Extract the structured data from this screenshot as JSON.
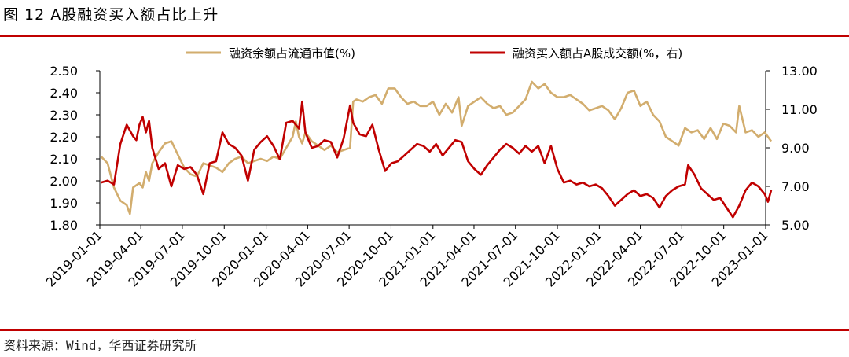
{
  "figure": {
    "title": "图 12 A股融资买入额占比上升",
    "source": "资料来源：Wind，华西证券研究所"
  },
  "colors": {
    "accent_rule": "#c00000",
    "series_left": "#d2ad6e",
    "series_right": "#c00000"
  },
  "chart_data": {
    "type": "line",
    "xlabel": "",
    "x_ticks": [
      "2019-01-01",
      "2019-04-01",
      "2019-07-01",
      "2019-10-01",
      "2020-01-01",
      "2020-04-01",
      "2020-07-01",
      "2020-10-01",
      "2021-01-01",
      "2021-04-01",
      "2021-07-01",
      "2021-10-01",
      "2022-01-01",
      "2022-04-01",
      "2022-07-01",
      "2022-10-01",
      "2023-01-01"
    ],
    "y_left": {
      "min": 1.8,
      "max": 2.5,
      "ticks": [
        "1.80",
        "1.90",
        "2.00",
        "2.10",
        "2.20",
        "2.30",
        "2.40",
        "2.50"
      ]
    },
    "y_right": {
      "min": 5.0,
      "max": 13.0,
      "ticks": [
        "5.00",
        "7.00",
        "9.00",
        "11.00",
        "13.00"
      ]
    },
    "legend": {
      "placement": "top-center"
    },
    "series": [
      {
        "name": "融资余额占流通市值(%)",
        "axis": "left",
        "points": [
          [
            "2019-01-04",
            2.11
          ],
          [
            "2019-01-18",
            2.08
          ],
          [
            "2019-02-01",
            1.97
          ],
          [
            "2019-02-15",
            1.91
          ],
          [
            "2019-03-01",
            1.89
          ],
          [
            "2019-03-08",
            1.85
          ],
          [
            "2019-03-15",
            1.97
          ],
          [
            "2019-03-29",
            1.99
          ],
          [
            "2019-04-05",
            1.97
          ],
          [
            "2019-04-12",
            2.04
          ],
          [
            "2019-04-19",
            2.0
          ],
          [
            "2019-04-26",
            2.08
          ],
          [
            "2019-05-10",
            2.13
          ],
          [
            "2019-05-24",
            2.17
          ],
          [
            "2019-06-07",
            2.18
          ],
          [
            "2019-06-21",
            2.12
          ],
          [
            "2019-07-05",
            2.06
          ],
          [
            "2019-07-19",
            2.03
          ],
          [
            "2019-08-02",
            2.02
          ],
          [
            "2019-08-16",
            2.08
          ],
          [
            "2019-08-30",
            2.07
          ],
          [
            "2019-09-13",
            2.06
          ],
          [
            "2019-09-27",
            2.04
          ],
          [
            "2019-10-11",
            2.08
          ],
          [
            "2019-10-25",
            2.1
          ],
          [
            "2019-11-08",
            2.11
          ],
          [
            "2019-11-22",
            2.08
          ],
          [
            "2019-12-06",
            2.09
          ],
          [
            "2019-12-20",
            2.1
          ],
          [
            "2020-01-03",
            2.09
          ],
          [
            "2020-01-17",
            2.11
          ],
          [
            "2020-01-31",
            2.1
          ],
          [
            "2020-02-14",
            2.15
          ],
          [
            "2020-02-28",
            2.2
          ],
          [
            "2020-03-06",
            2.27
          ],
          [
            "2020-03-13",
            2.2
          ],
          [
            "2020-03-20",
            2.17
          ],
          [
            "2020-03-27",
            2.22
          ],
          [
            "2020-04-10",
            2.18
          ],
          [
            "2020-04-24",
            2.16
          ],
          [
            "2020-05-08",
            2.14
          ],
          [
            "2020-05-22",
            2.16
          ],
          [
            "2020-06-05",
            2.13
          ],
          [
            "2020-06-19",
            2.14
          ],
          [
            "2020-07-03",
            2.15
          ],
          [
            "2020-07-10",
            2.36
          ],
          [
            "2020-07-17",
            2.37
          ],
          [
            "2020-07-31",
            2.36
          ],
          [
            "2020-08-14",
            2.38
          ],
          [
            "2020-08-28",
            2.39
          ],
          [
            "2020-09-11",
            2.35
          ],
          [
            "2020-09-25",
            2.42
          ],
          [
            "2020-10-09",
            2.42
          ],
          [
            "2020-10-23",
            2.38
          ],
          [
            "2020-11-06",
            2.35
          ],
          [
            "2020-11-20",
            2.36
          ],
          [
            "2020-12-04",
            2.34
          ],
          [
            "2020-12-18",
            2.34
          ],
          [
            "2021-01-01",
            2.36
          ],
          [
            "2021-01-15",
            2.3
          ],
          [
            "2021-01-29",
            2.35
          ],
          [
            "2021-02-12",
            2.31
          ],
          [
            "2021-02-26",
            2.38
          ],
          [
            "2021-03-05",
            2.25
          ],
          [
            "2021-03-19",
            2.34
          ],
          [
            "2021-04-02",
            2.36
          ],
          [
            "2021-04-16",
            2.38
          ],
          [
            "2021-04-30",
            2.35
          ],
          [
            "2021-05-14",
            2.33
          ],
          [
            "2021-05-28",
            2.34
          ],
          [
            "2021-06-11",
            2.3
          ],
          [
            "2021-06-25",
            2.31
          ],
          [
            "2021-07-09",
            2.34
          ],
          [
            "2021-07-23",
            2.37
          ],
          [
            "2021-08-06",
            2.45
          ],
          [
            "2021-08-20",
            2.42
          ],
          [
            "2021-09-03",
            2.44
          ],
          [
            "2021-09-17",
            2.4
          ],
          [
            "2021-10-01",
            2.38
          ],
          [
            "2021-10-15",
            2.38
          ],
          [
            "2021-10-29",
            2.39
          ],
          [
            "2021-11-12",
            2.37
          ],
          [
            "2021-11-26",
            2.35
          ],
          [
            "2021-12-10",
            2.32
          ],
          [
            "2021-12-24",
            2.33
          ],
          [
            "2022-01-07",
            2.34
          ],
          [
            "2022-01-21",
            2.32
          ],
          [
            "2022-02-04",
            2.28
          ],
          [
            "2022-02-18",
            2.33
          ],
          [
            "2022-03-04",
            2.4
          ],
          [
            "2022-03-18",
            2.41
          ],
          [
            "2022-04-01",
            2.34
          ],
          [
            "2022-04-15",
            2.36
          ],
          [
            "2022-04-29",
            2.3
          ],
          [
            "2022-05-13",
            2.27
          ],
          [
            "2022-05-27",
            2.2
          ],
          [
            "2022-06-10",
            2.18
          ],
          [
            "2022-06-24",
            2.16
          ],
          [
            "2022-07-08",
            2.24
          ],
          [
            "2022-07-22",
            2.22
          ],
          [
            "2022-08-05",
            2.23
          ],
          [
            "2022-08-19",
            2.19
          ],
          [
            "2022-09-02",
            2.24
          ],
          [
            "2022-09-16",
            2.19
          ],
          [
            "2022-09-30",
            2.26
          ],
          [
            "2022-10-14",
            2.25
          ],
          [
            "2022-10-28",
            2.22
          ],
          [
            "2022-11-04",
            2.34
          ],
          [
            "2022-11-18",
            2.22
          ],
          [
            "2022-12-02",
            2.23
          ],
          [
            "2022-12-16",
            2.2
          ],
          [
            "2022-12-30",
            2.22
          ],
          [
            "2023-01-13",
            2.18
          ]
        ]
      },
      {
        "name": "融资买入额占A股成交额(%，右)",
        "axis": "right",
        "points": [
          [
            "2019-01-04",
            7.2
          ],
          [
            "2019-01-18",
            7.3
          ],
          [
            "2019-02-01",
            7.1
          ],
          [
            "2019-02-15",
            9.2
          ],
          [
            "2019-03-01",
            10.2
          ],
          [
            "2019-03-15",
            9.6
          ],
          [
            "2019-03-22",
            9.4
          ],
          [
            "2019-03-29",
            10.2
          ],
          [
            "2019-04-05",
            10.6
          ],
          [
            "2019-04-12",
            9.8
          ],
          [
            "2019-04-19",
            10.4
          ],
          [
            "2019-04-26",
            9.0
          ],
          [
            "2019-05-10",
            7.9
          ],
          [
            "2019-05-24",
            8.2
          ],
          [
            "2019-06-07",
            7.0
          ],
          [
            "2019-06-21",
            8.1
          ],
          [
            "2019-07-05",
            7.9
          ],
          [
            "2019-07-19",
            8.0
          ],
          [
            "2019-08-02",
            7.6
          ],
          [
            "2019-08-16",
            6.6
          ],
          [
            "2019-08-30",
            8.2
          ],
          [
            "2019-09-13",
            8.3
          ],
          [
            "2019-09-27",
            9.8
          ],
          [
            "2019-10-11",
            9.2
          ],
          [
            "2019-10-25",
            9.0
          ],
          [
            "2019-11-08",
            8.6
          ],
          [
            "2019-11-22",
            7.3
          ],
          [
            "2019-12-06",
            8.9
          ],
          [
            "2019-12-20",
            9.3
          ],
          [
            "2020-01-03",
            9.6
          ],
          [
            "2020-01-17",
            9.1
          ],
          [
            "2020-01-31",
            8.4
          ],
          [
            "2020-02-14",
            10.3
          ],
          [
            "2020-02-28",
            10.4
          ],
          [
            "2020-03-13",
            10.0
          ],
          [
            "2020-03-20",
            11.4
          ],
          [
            "2020-03-27",
            9.8
          ],
          [
            "2020-04-10",
            9.0
          ],
          [
            "2020-04-24",
            9.1
          ],
          [
            "2020-05-08",
            9.4
          ],
          [
            "2020-05-22",
            9.3
          ],
          [
            "2020-06-05",
            8.5
          ],
          [
            "2020-06-19",
            9.5
          ],
          [
            "2020-07-03",
            11.2
          ],
          [
            "2020-07-10",
            10.3
          ],
          [
            "2020-07-24",
            9.7
          ],
          [
            "2020-08-07",
            9.6
          ],
          [
            "2020-08-21",
            10.2
          ],
          [
            "2020-09-04",
            8.9
          ],
          [
            "2020-09-18",
            7.8
          ],
          [
            "2020-10-02",
            8.2
          ],
          [
            "2020-10-16",
            8.3
          ],
          [
            "2020-10-30",
            8.6
          ],
          [
            "2020-11-13",
            8.9
          ],
          [
            "2020-11-27",
            9.2
          ],
          [
            "2020-12-11",
            9.1
          ],
          [
            "2020-12-25",
            8.8
          ],
          [
            "2021-01-08",
            9.2
          ],
          [
            "2021-01-22",
            8.6
          ],
          [
            "2021-02-05",
            9.0
          ],
          [
            "2021-02-19",
            9.4
          ],
          [
            "2021-03-05",
            9.3
          ],
          [
            "2021-03-19",
            8.3
          ],
          [
            "2021-04-02",
            7.9
          ],
          [
            "2021-04-16",
            7.6
          ],
          [
            "2021-04-30",
            8.1
          ],
          [
            "2021-05-14",
            8.5
          ],
          [
            "2021-05-28",
            8.9
          ],
          [
            "2021-06-11",
            9.2
          ],
          [
            "2021-06-25",
            9.0
          ],
          [
            "2021-07-09",
            8.7
          ],
          [
            "2021-07-23",
            9.1
          ],
          [
            "2021-08-06",
            8.8
          ],
          [
            "2021-08-20",
            9.1
          ],
          [
            "2021-09-03",
            8.2
          ],
          [
            "2021-09-17",
            9.1
          ],
          [
            "2021-10-01",
            7.9
          ],
          [
            "2021-10-15",
            7.2
          ],
          [
            "2021-10-29",
            7.3
          ],
          [
            "2021-11-12",
            7.1
          ],
          [
            "2021-11-26",
            7.2
          ],
          [
            "2021-12-10",
            7.0
          ],
          [
            "2021-12-24",
            7.1
          ],
          [
            "2022-01-07",
            6.9
          ],
          [
            "2022-01-21",
            6.5
          ],
          [
            "2022-02-04",
            6.0
          ],
          [
            "2022-02-18",
            6.3
          ],
          [
            "2022-03-04",
            6.6
          ],
          [
            "2022-03-18",
            6.8
          ],
          [
            "2022-04-01",
            6.5
          ],
          [
            "2022-04-15",
            6.6
          ],
          [
            "2022-04-29",
            6.4
          ],
          [
            "2022-05-13",
            5.9
          ],
          [
            "2022-05-27",
            6.5
          ],
          [
            "2022-06-10",
            6.8
          ],
          [
            "2022-06-24",
            7.0
          ],
          [
            "2022-07-08",
            7.1
          ],
          [
            "2022-07-15",
            8.1
          ],
          [
            "2022-07-29",
            7.6
          ],
          [
            "2022-08-12",
            6.9
          ],
          [
            "2022-08-26",
            6.6
          ],
          [
            "2022-09-09",
            6.3
          ],
          [
            "2022-09-23",
            6.4
          ],
          [
            "2022-10-07",
            5.9
          ],
          [
            "2022-10-21",
            5.4
          ],
          [
            "2022-11-04",
            6.0
          ],
          [
            "2022-11-18",
            6.8
          ],
          [
            "2022-12-02",
            7.2
          ],
          [
            "2022-12-16",
            7.0
          ],
          [
            "2022-12-30",
            6.6
          ],
          [
            "2023-01-06",
            6.2
          ],
          [
            "2023-01-13",
            6.8
          ]
        ]
      }
    ]
  }
}
